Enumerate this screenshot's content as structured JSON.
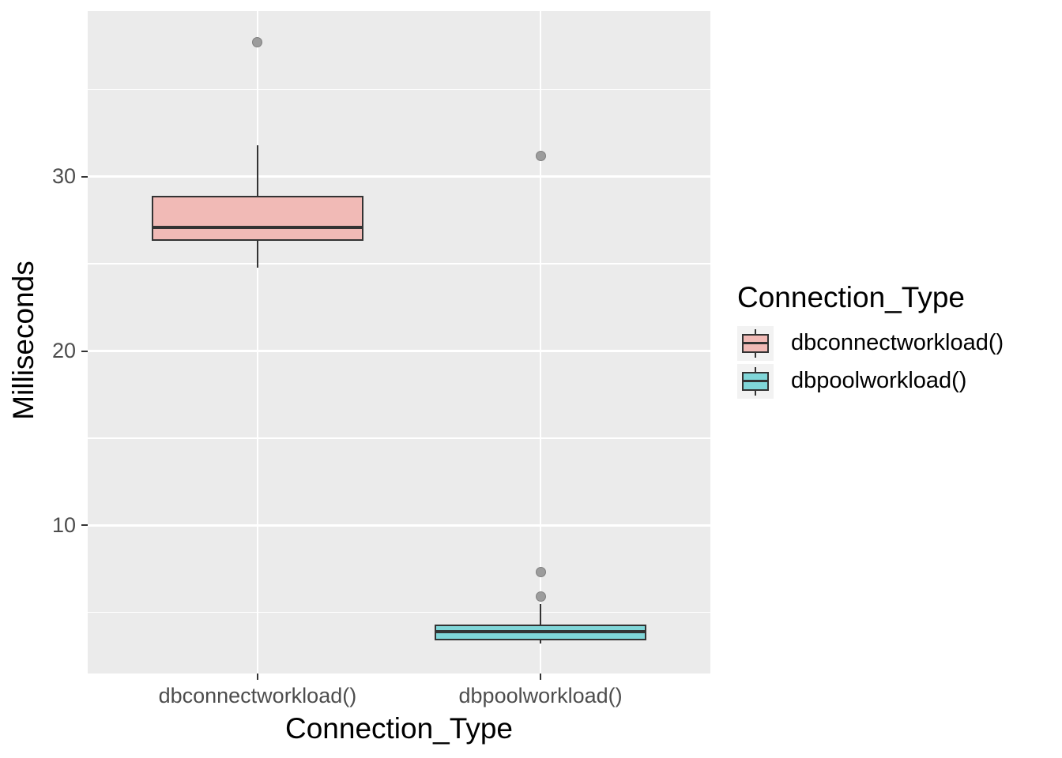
{
  "chart_data": {
    "type": "boxplot",
    "title": "",
    "xlabel": "Connection_Type",
    "ylabel": "Milliseconds",
    "categories": [
      "dbconnectworkload()",
      "dbpoolworkload()"
    ],
    "boxes": [
      {
        "category": "dbconnectworkload()",
        "fill": "#F1BAB6",
        "whisker_low": 24.8,
        "q1": 26.3,
        "median": 27.1,
        "q3": 28.9,
        "whisker_high": 31.8,
        "outliers": [
          37.7
        ]
      },
      {
        "category": "dbpoolworkload()",
        "fill": "#80D6D8",
        "whisker_low": 3.2,
        "q1": 3.4,
        "median": 3.9,
        "q3": 4.3,
        "whisker_high": 5.5,
        "outliers": [
          5.9,
          7.3,
          31.2
        ]
      }
    ],
    "y_axis": {
      "ticks": [
        10,
        20,
        30
      ],
      "minor_ticks": [
        5,
        15,
        25,
        35
      ],
      "range": [
        1.5,
        39.5
      ]
    },
    "x_axis": {
      "tick_labels": [
        "dbconnectworkload()",
        "dbpoolworkload()"
      ]
    },
    "legend": {
      "title": "Connection_Type",
      "position": "right",
      "entries": [
        {
          "label": "dbconnectworkload()",
          "color": "#F1BAB6"
        },
        {
          "label": "dbpoolworkload()",
          "color": "#80D6D8"
        }
      ]
    },
    "grid": "on",
    "colors": {
      "panel_bg": "#EBEBEB",
      "grid": "#FFFFFF",
      "box_stroke": "#333333",
      "outlier_fill": "#9C9C9C",
      "outlier_stroke": "#7F7F7F",
      "tick_label": "#4D4D4D",
      "tick_mark": "#333333",
      "axis_title": "#000000",
      "legend_key_bg": "#F2F2F2"
    }
  }
}
